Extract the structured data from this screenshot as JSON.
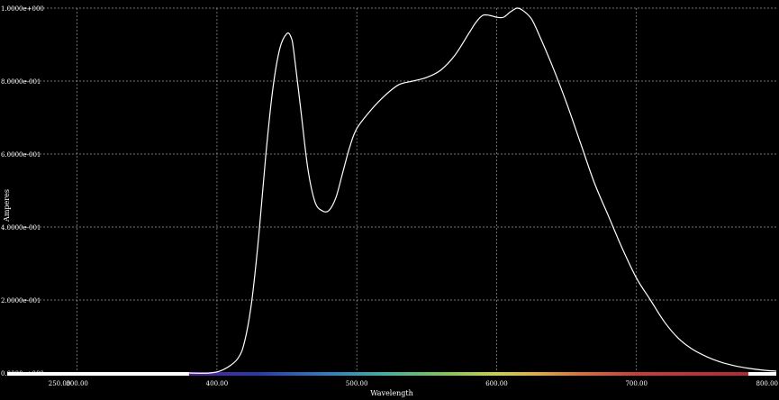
{
  "chart_data": {
    "type": "line",
    "xlabel": "Wavelength",
    "ylabel": "Amperes",
    "xlim": [
      250,
      800
    ],
    "ylim": [
      0,
      1.0
    ],
    "x_ticks": [
      250,
      300,
      400,
      500,
      600,
      700,
      800
    ],
    "x_tick_labels": [
      "250.00",
      "300.00",
      "400.00",
      "500.00",
      "600.00",
      "700.00",
      "800.00"
    ],
    "y_ticks": [
      0,
      0.2,
      0.4,
      0.6,
      0.8,
      1.0
    ],
    "y_tick_labels": [
      "0.0000e+000",
      "2.0000e-001",
      "4.0000e-001",
      "6.0000e-001",
      "8.0000e-001",
      "1.0000e+000"
    ],
    "grid": true,
    "background_color": "#000000",
    "line_color": "#ffffff",
    "spectrum_bar": {
      "start": 380,
      "end": 780
    },
    "series": [
      {
        "x": [
          380,
          395,
          405,
          415,
          420,
          425,
          430,
          435,
          440,
          445,
          450,
          453,
          455,
          460,
          465,
          470,
          475,
          480,
          485,
          490,
          495,
          500,
          510,
          520,
          530,
          540,
          550,
          560,
          570,
          580,
          585,
          590,
          595,
          600,
          605,
          610,
          615,
          620,
          625,
          630,
          640,
          650,
          660,
          670,
          680,
          690,
          700,
          710,
          720,
          730,
          740,
          750,
          760,
          770,
          780,
          790,
          800
        ],
        "y": [
          0.0,
          0.0,
          0.01,
          0.04,
          0.09,
          0.2,
          0.38,
          0.6,
          0.78,
          0.89,
          0.93,
          0.92,
          0.88,
          0.72,
          0.56,
          0.47,
          0.445,
          0.445,
          0.48,
          0.55,
          0.62,
          0.67,
          0.72,
          0.76,
          0.79,
          0.8,
          0.81,
          0.83,
          0.87,
          0.93,
          0.96,
          0.98,
          0.98,
          0.975,
          0.975,
          0.99,
          1.0,
          0.99,
          0.97,
          0.93,
          0.84,
          0.74,
          0.63,
          0.52,
          0.43,
          0.34,
          0.26,
          0.2,
          0.14,
          0.095,
          0.065,
          0.045,
          0.03,
          0.02,
          0.013,
          0.008,
          0.005
        ]
      }
    ]
  }
}
